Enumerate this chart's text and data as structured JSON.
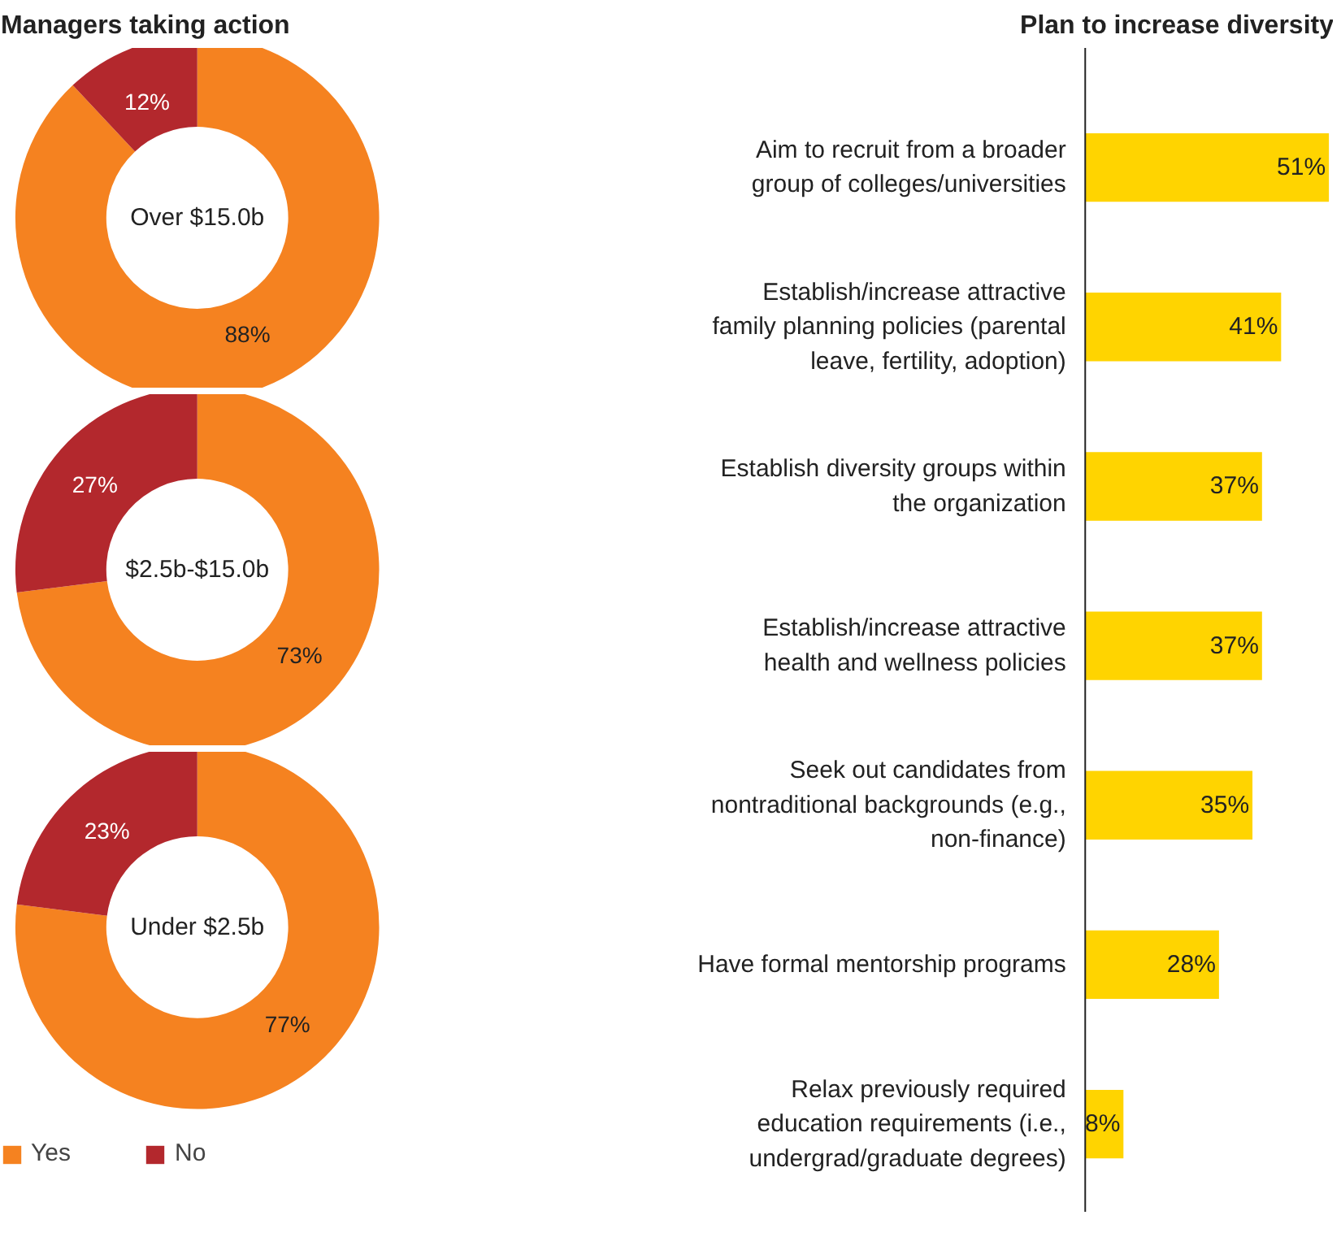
{
  "chart_data": [
    {
      "type": "donut",
      "title": "Managers taking action",
      "annotations": [
        "Over $15.0b"
      ],
      "categories": [
        null,
        null
      ],
      "values": [
        88,
        12
      ],
      "value_labels": [
        "88%",
        "12%"
      ],
      "colors": [
        "#f58220",
        "#b3282d"
      ]
    },
    {
      "type": "donut",
      "annotations": [
        "$2.5b-$15.0b"
      ],
      "categories": [
        null,
        null
      ],
      "values": [
        73,
        27
      ],
      "value_labels": [
        "73%",
        "27%"
      ],
      "colors": [
        "#f58220",
        "#b3282d"
      ]
    },
    {
      "type": "donut",
      "annotations": [
        "Under $2.5b"
      ],
      "categories": [
        "Yes",
        "No"
      ],
      "values": [
        77,
        23
      ],
      "value_labels": [
        "77%",
        "23%"
      ],
      "colors": [
        "#f58220",
        "#b3282d"
      ],
      "legend": "bottom left"
    },
    {
      "type": "bar",
      "orientation": "horizontal",
      "title": "Plan to increase diversity",
      "categories": [
        "Aim to recruit from a broader group of colleges/universities",
        "Establish/increase attractive family planning policies (parental leave, fertility, adoption)",
        "Establish diversity groups within the organization",
        "Establish/increase attractive health and wellness policies",
        "Seek out candidates from nontraditional backgrounds (e.g., non-finance)",
        "Have formal mentorship programs",
        "Relax previously required education requirements (i.e., undergrad/graduate degrees)"
      ],
      "values": [
        51,
        41,
        37,
        37,
        35,
        28,
        8
      ],
      "value_labels": [
        "51%",
        "41%",
        "37%",
        "37%",
        "35%",
        "28%",
        "8%"
      ],
      "color": "#ffd400"
    }
  ]
}
